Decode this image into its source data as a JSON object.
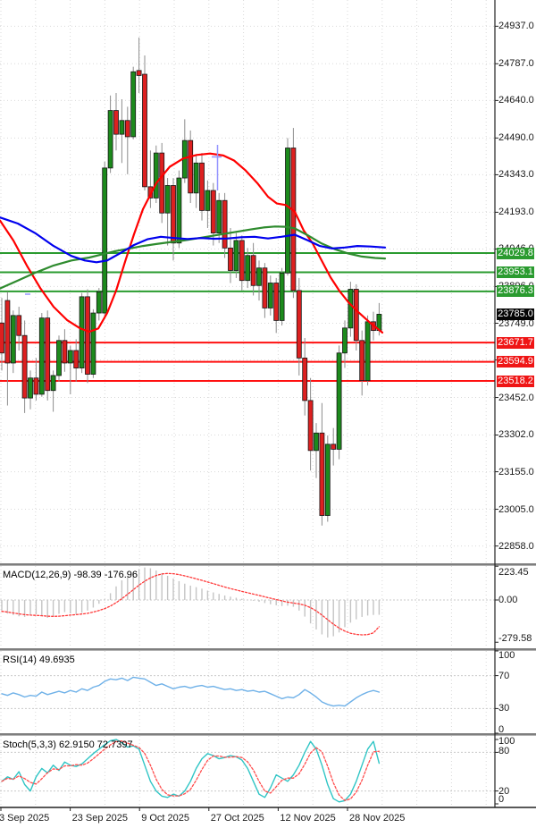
{
  "chart_data": {
    "type": "candlestick",
    "ylim": [
      22858,
      24937
    ],
    "grid": true,
    "price_axis_ticks": [
      "24937.0",
      "24787.0",
      "24640.0",
      "24490.0",
      "24343.0",
      "24193.0",
      "24046.0",
      "23896.0",
      "23749.0",
      "23602.0",
      "23452.0",
      "23302.0",
      "23155.0",
      "23005.0",
      "22858.0"
    ],
    "x_tick_labels": [
      "3 Sep 2025",
      "23 Sep 2025",
      "9 Oct 2025",
      "27 Oct 2025",
      "12 Nov 2025",
      "28 Nov 2025"
    ],
    "levels": {
      "resistance": [
        {
          "label": "24029.8",
          "value": 24029.8
        },
        {
          "label": "23953.1",
          "value": 23953.1
        },
        {
          "label": "23876.3",
          "value": 23876.3
        }
      ],
      "support": [
        {
          "label": "23671.7",
          "value": 23671.7
        },
        {
          "label": "23594.9",
          "value": 23594.9
        },
        {
          "label": "23518.2",
          "value": 23518.2
        }
      ],
      "current": {
        "label": "23785.0",
        "value": 23785.0
      }
    },
    "candles_ohlc": [
      [
        23750,
        23850,
        23560,
        23630
      ],
      [
        23840,
        23875,
        23420,
        23590
      ],
      [
        23590,
        23800,
        23550,
        23780
      ],
      [
        23780,
        23815,
        23640,
        23700
      ],
      [
        23700,
        23760,
        23390,
        23450
      ],
      [
        23450,
        23560,
        23405,
        23530
      ],
      [
        23530,
        23610,
        23440,
        23465
      ],
      [
        23465,
        23790,
        23455,
        23770
      ],
      [
        23770,
        23800,
        23440,
        23480
      ],
      [
        23480,
        23560,
        23395,
        23540
      ],
      [
        23540,
        23700,
        23515,
        23680
      ],
      [
        23680,
        23725,
        23555,
        23590
      ],
      [
        23590,
        23660,
        23465,
        23640
      ],
      [
        23640,
        23685,
        23515,
        23570
      ],
      [
        23570,
        23870,
        23550,
        23855
      ],
      [
        23855,
        23885,
        23510,
        23545
      ],
      [
        23545,
        23805,
        23530,
        23790
      ],
      [
        23790,
        23890,
        23760,
        23875
      ],
      [
        23790,
        24395,
        23775,
        24370
      ],
      [
        24370,
        24660,
        24350,
        24600
      ],
      [
        24600,
        24670,
        24440,
        24505
      ],
      [
        24505,
        24645,
        24390,
        24560
      ],
      [
        24560,
        24615,
        24345,
        24495
      ],
      [
        24495,
        24775,
        24485,
        24755
      ],
      [
        24760,
        24892,
        24670,
        24740
      ],
      [
        24745,
        24820,
        24280,
        24295
      ],
      [
        24295,
        24440,
        24210,
        24250
      ],
      [
        24250,
        24460,
        24230,
        24430
      ],
      [
        24430,
        24470,
        24150,
        24190
      ],
      [
        24190,
        24330,
        24060,
        24300
      ],
      [
        24300,
        24330,
        24000,
        24070
      ],
      [
        24070,
        24360,
        24050,
        24330
      ],
      [
        24330,
        24565,
        24310,
        24480
      ],
      [
        24480,
        24520,
        24230,
        24270
      ],
      [
        24270,
        24420,
        24210,
        24390
      ],
      [
        24390,
        24430,
        24160,
        24200
      ],
      [
        24200,
        24320,
        24130,
        24280
      ],
      [
        24280,
        24310,
        24060,
        24110
      ],
      [
        24110,
        24270,
        24070,
        24240
      ],
      [
        24240,
        24270,
        24010,
        24050
      ],
      [
        24050,
        24130,
        23910,
        23960
      ],
      [
        23960,
        24110,
        23930,
        24080
      ],
      [
        24080,
        24100,
        23880,
        23920
      ],
      [
        23920,
        24050,
        23890,
        24020
      ],
      [
        24020,
        24070,
        23860,
        23900
      ],
      [
        23900,
        24000,
        23840,
        23970
      ],
      [
        23970,
        23990,
        23770,
        23810
      ],
      [
        23810,
        23940,
        23780,
        23910
      ],
      [
        23910,
        23930,
        23710,
        23760
      ],
      [
        23760,
        23970,
        23740,
        23950
      ],
      [
        23950,
        24490,
        23940,
        24450
      ],
      [
        24450,
        24530,
        23850,
        23880
      ],
      [
        23880,
        23930,
        23540,
        23610
      ],
      [
        23610,
        23690,
        23380,
        23440
      ],
      [
        23440,
        23530,
        23160,
        23240
      ],
      [
        23240,
        23350,
        23130,
        23310
      ],
      [
        23310,
        23430,
        22940,
        22980
      ],
      [
        22980,
        23300,
        22955,
        23265
      ],
      [
        23265,
        23330,
        23180,
        23245
      ],
      [
        23245,
        23660,
        23205,
        23630
      ],
      [
        23630,
        23760,
        23570,
        23730
      ],
      [
        23730,
        23915,
        23695,
        23885
      ],
      [
        23885,
        23905,
        23640,
        23680
      ],
      [
        23680,
        23720,
        23460,
        23520
      ],
      [
        23520,
        23780,
        23500,
        23755
      ],
      [
        23755,
        23795,
        23680,
        23720
      ],
      [
        23720,
        23830,
        23700,
        23785
      ]
    ],
    "moving_averages": {
      "fast_red": [
        [
          0,
          24160
        ],
        [
          15,
          24080
        ],
        [
          30,
          23980
        ],
        [
          45,
          23890
        ],
        [
          60,
          23815
        ],
        [
          75,
          23762
        ],
        [
          90,
          23728
        ],
        [
          100,
          23715
        ],
        [
          110,
          23728
        ],
        [
          120,
          23790
        ],
        [
          130,
          23880
        ],
        [
          140,
          23995
        ],
        [
          150,
          24105
        ],
        [
          160,
          24205
        ],
        [
          175,
          24310
        ],
        [
          190,
          24375
        ],
        [
          205,
          24408
        ],
        [
          220,
          24422
        ],
        [
          235,
          24428
        ],
        [
          250,
          24420
        ],
        [
          262,
          24400
        ],
        [
          275,
          24360
        ],
        [
          288,
          24310
        ],
        [
          300,
          24255
        ],
        [
          310,
          24228
        ],
        [
          320,
          24222
        ],
        [
          330,
          24195
        ],
        [
          340,
          24120
        ],
        [
          350,
          24068
        ],
        [
          360,
          24000
        ],
        [
          370,
          23933
        ],
        [
          380,
          23878
        ],
        [
          390,
          23833
        ],
        [
          400,
          23797
        ],
        [
          414,
          23752
        ],
        [
          428,
          23712
        ]
      ],
      "mid_blue": [
        [
          0,
          24172
        ],
        [
          20,
          24148
        ],
        [
          40,
          24108
        ],
        [
          60,
          24058
        ],
        [
          80,
          24018
        ],
        [
          95,
          24000
        ],
        [
          108,
          23993
        ],
        [
          120,
          24000
        ],
        [
          135,
          24030
        ],
        [
          150,
          24062
        ],
        [
          165,
          24085
        ],
        [
          180,
          24095
        ],
        [
          195,
          24090
        ],
        [
          210,
          24086
        ],
        [
          225,
          24090
        ],
        [
          240,
          24087
        ],
        [
          255,
          24088
        ],
        [
          270,
          24093
        ],
        [
          285,
          24095
        ],
        [
          300,
          24088
        ],
        [
          315,
          24095
        ],
        [
          330,
          24103
        ],
        [
          345,
          24080
        ],
        [
          358,
          24058
        ],
        [
          372,
          24048
        ],
        [
          386,
          24052
        ],
        [
          400,
          24058
        ],
        [
          415,
          24056
        ],
        [
          431,
          24052
        ]
      ],
      "slow_green": [
        [
          0,
          23888
        ],
        [
          20,
          23920
        ],
        [
          40,
          23952
        ],
        [
          60,
          23980
        ],
        [
          80,
          24000
        ],
        [
          100,
          24012
        ],
        [
          115,
          24025
        ],
        [
          130,
          24038
        ],
        [
          145,
          24048
        ],
        [
          160,
          24058
        ],
        [
          175,
          24066
        ],
        [
          190,
          24073
        ],
        [
          205,
          24080
        ],
        [
          220,
          24088
        ],
        [
          235,
          24097
        ],
        [
          250,
          24106
        ],
        [
          265,
          24115
        ],
        [
          280,
          24124
        ],
        [
          295,
          24132
        ],
        [
          308,
          24136
        ],
        [
          320,
          24135
        ],
        [
          330,
          24128
        ],
        [
          345,
          24100
        ],
        [
          360,
          24068
        ],
        [
          375,
          24045
        ],
        [
          390,
          24028
        ],
        [
          405,
          24016
        ],
        [
          420,
          24010
        ],
        [
          431,
          24008
        ]
      ]
    },
    "macd": {
      "label": "MACD(12,26,9) -98.39 -176.96",
      "axis_ticks": [
        "223.45",
        "0.00",
        "-279.58"
      ],
      "axis_values": [
        223.45,
        0,
        -279.58
      ],
      "histogram": [
        -70,
        -90,
        -100,
        -108,
        -112,
        -100,
        -95,
        -105,
        -118,
        -108,
        -92,
        -80,
        -88,
        -95,
        -85,
        -70,
        -50,
        -25,
        5,
        45,
        90,
        130,
        160,
        185,
        205,
        215,
        210,
        195,
        178,
        160,
        142,
        125,
        108,
        95,
        85,
        75,
        62,
        50,
        40,
        30,
        22,
        15,
        8,
        2,
        -5,
        -12,
        -20,
        -28,
        -35,
        -40,
        -38,
        -45,
        -70,
        -110,
        -155,
        -195,
        -228,
        -248,
        -240,
        -215,
        -180,
        -150,
        -128,
        -112,
        -103,
        -99,
        -98
      ],
      "signal": [
        -75,
        -80,
        -86,
        -92,
        -97,
        -100,
        -102,
        -104,
        -107,
        -108,
        -107,
        -104,
        -100,
        -97,
        -93,
        -88,
        -80,
        -70,
        -57,
        -40,
        -18,
        8,
        38,
        68,
        98,
        124,
        146,
        162,
        172,
        176,
        174,
        168,
        160,
        150,
        140,
        130,
        119,
        108,
        97,
        86,
        76,
        66,
        57,
        48,
        39,
        30,
        21,
        12,
        3,
        -6,
        -14,
        -20,
        -26,
        -35,
        -50,
        -72,
        -100,
        -130,
        -160,
        -186,
        -206,
        -220,
        -228,
        -231,
        -229,
        -218,
        -177
      ]
    },
    "rsi": {
      "label": "RSI(14) 49.6935",
      "axis_ticks": [
        "100",
        "70",
        "30",
        "0"
      ],
      "axis_values": [
        100,
        70,
        30,
        0
      ],
      "values": [
        48,
        46,
        49,
        47,
        44,
        46,
        45,
        50,
        47,
        49,
        51,
        49,
        52,
        50,
        54,
        52,
        56,
        58,
        63,
        66,
        65,
        67,
        64,
        68,
        67,
        66,
        62,
        58,
        60,
        57,
        54,
        56,
        57,
        55,
        57,
        58,
        56,
        57,
        55,
        53,
        54,
        52,
        53,
        51,
        52,
        50,
        51,
        48,
        45,
        42,
        44,
        43,
        47,
        53,
        49,
        44,
        38,
        35,
        33,
        34,
        33,
        38,
        43,
        47,
        50,
        52,
        50
      ]
    },
    "stoch": {
      "label": "Stoch(5,3,3) 62.9150 72.7397",
      "axis_ticks": [
        "100",
        "80",
        "20",
        "0"
      ],
      "axis_values": [
        100,
        80,
        20,
        0
      ],
      "k_values": [
        35,
        42,
        38,
        50,
        30,
        20,
        42,
        55,
        48,
        60,
        52,
        65,
        60,
        58,
        62,
        70,
        78,
        85,
        92,
        98,
        100,
        95,
        88,
        90,
        85,
        60,
        35,
        20,
        12,
        10,
        15,
        12,
        20,
        35,
        55,
        70,
        78,
        75,
        70,
        72,
        75,
        73,
        68,
        55,
        35,
        15,
        10,
        25,
        45,
        40,
        35,
        45,
        60,
        80,
        97,
        85,
        60,
        30,
        8,
        3,
        5,
        15,
        35,
        60,
        85,
        97,
        63
      ]
    },
    "colors": {
      "candle_up": "#1c8a1c",
      "candle_down": "#dd2020",
      "wick": "#8c8c8c",
      "ma_fast": "#ff0000",
      "ma_mid": "#0000ee",
      "ma_slow": "#2e8b2e",
      "resistance_line": "#2a9b2f",
      "support_line": "#ff1010",
      "current_badge": "#050505",
      "macd_bar": "#c4c4c4",
      "macd_signal": "#ff3838",
      "rsi_line": "#6fb1e8",
      "stoch_k": "#2fc5c5",
      "stoch_d": "#ff4d4d",
      "grid": "#d9d9d9",
      "marker": "#9595ff"
    }
  }
}
